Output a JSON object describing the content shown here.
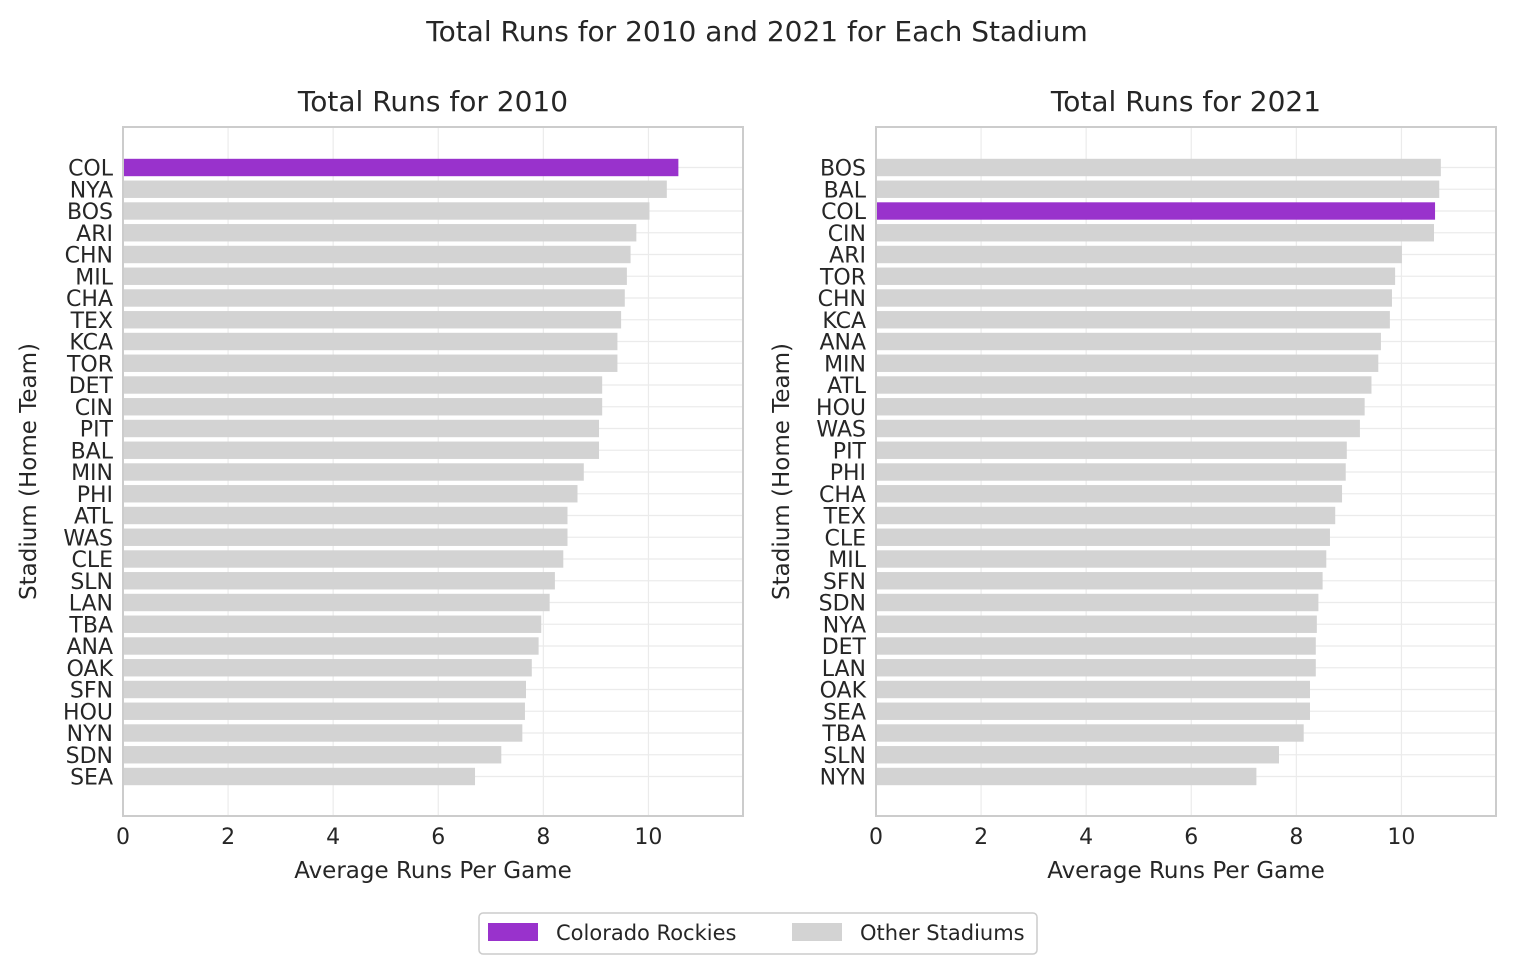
{
  "title": "Total Runs for 2010 and 2021 for Each Stadium",
  "colors": {
    "highlight": "#9932CC",
    "other": "#D3D3D3",
    "grid": "#EBEBEB",
    "frame": "#CCCCCC",
    "text": "#262626"
  },
  "legend": {
    "placement": "bottom-center",
    "items": [
      {
        "label": "Colorado Rockies",
        "color": "#9932CC"
      },
      {
        "label": "Other Stadiums",
        "color": "#D3D3D3"
      }
    ]
  },
  "chart_data": [
    {
      "type": "bar",
      "orientation": "horizontal",
      "title": "Total Runs for 2010",
      "xlabel": "Average Runs Per Game",
      "ylabel": "Stadium (Home Team)",
      "xlim": [
        0,
        11.8
      ],
      "xticks": [
        0,
        2,
        4,
        6,
        8,
        10
      ],
      "grid": true,
      "highlight": "COL",
      "categories": [
        "COL",
        "NYA",
        "BOS",
        "ARI",
        "CHN",
        "MIL",
        "CHA",
        "TEX",
        "KCA",
        "TOR",
        "DET",
        "CIN",
        "PIT",
        "BAL",
        "MIN",
        "PHI",
        "ATL",
        "WAS",
        "CLE",
        "SLN",
        "LAN",
        "TBA",
        "ANA",
        "OAK",
        "SFN",
        "HOU",
        "NYN",
        "SDN",
        "SEA"
      ],
      "values": [
        10.57,
        10.35,
        10.02,
        9.77,
        9.66,
        9.59,
        9.55,
        9.48,
        9.41,
        9.41,
        9.12,
        9.12,
        9.06,
        9.06,
        8.77,
        8.65,
        8.46,
        8.46,
        8.38,
        8.22,
        8.12,
        7.96,
        7.91,
        7.78,
        7.67,
        7.65,
        7.6,
        7.2,
        6.7
      ]
    },
    {
      "type": "bar",
      "orientation": "horizontal",
      "title": "Total Runs for 2021",
      "xlabel": "Average Runs Per Game",
      "ylabel": "Stadium (Home Team)",
      "xlim": [
        0,
        11.8
      ],
      "xticks": [
        0,
        2,
        4,
        6,
        8,
        10
      ],
      "grid": true,
      "highlight": "COL",
      "categories": [
        "BOS",
        "BAL",
        "COL",
        "CIN",
        "ARI",
        "TOR",
        "CHN",
        "KCA",
        "ANA",
        "MIN",
        "ATL",
        "HOU",
        "WAS",
        "PIT",
        "PHI",
        "CHA",
        "TEX",
        "CLE",
        "MIL",
        "SFN",
        "SDN",
        "NYA",
        "DET",
        "LAN",
        "OAK",
        "SEA",
        "TBA",
        "SLN",
        "NYN"
      ],
      "values": [
        10.75,
        10.72,
        10.64,
        10.62,
        10.01,
        9.88,
        9.82,
        9.78,
        9.61,
        9.56,
        9.43,
        9.3,
        9.21,
        8.96,
        8.94,
        8.87,
        8.74,
        8.64,
        8.57,
        8.5,
        8.42,
        8.39,
        8.37,
        8.37,
        8.26,
        8.26,
        8.14,
        7.67,
        7.24
      ]
    }
  ]
}
